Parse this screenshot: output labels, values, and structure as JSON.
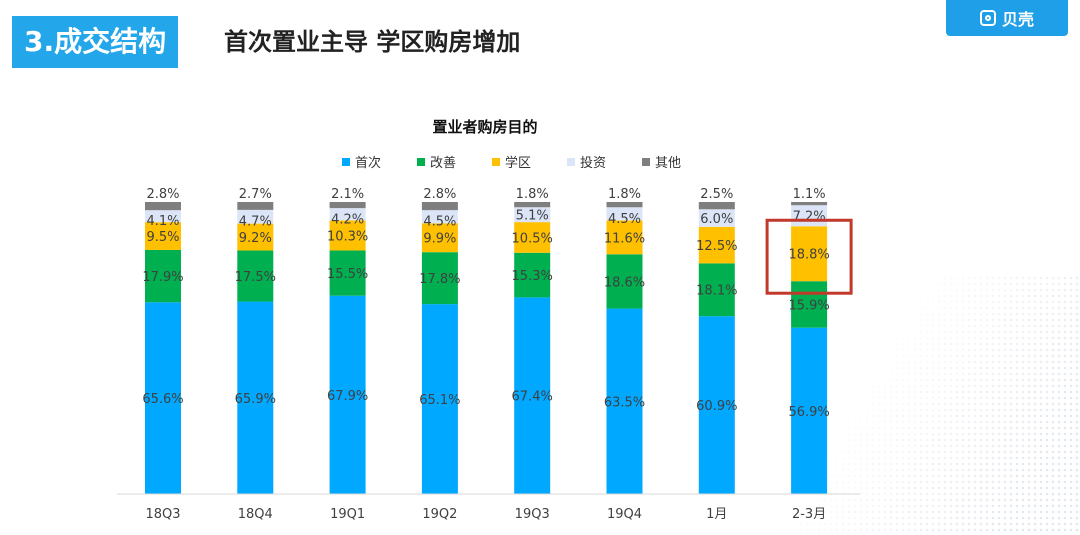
{
  "header": {
    "section_tag": "3.成交结构",
    "headline": "首次置业主导  学区购房增加",
    "brand_label": "贝壳"
  },
  "chart_data": {
    "type": "bar",
    "stacked": true,
    "title": "置业者购房目的",
    "categories": [
      "18Q3",
      "18Q4",
      "19Q1",
      "19Q2",
      "19Q3",
      "19Q4",
      "1月",
      "2-3月"
    ],
    "series": [
      {
        "name": "首次",
        "color": "#00a8ff",
        "values": [
          65.6,
          65.9,
          67.9,
          65.1,
          67.4,
          63.5,
          60.9,
          56.9
        ]
      },
      {
        "name": "改善",
        "color": "#00b050",
        "values": [
          17.9,
          17.5,
          15.5,
          17.8,
          15.3,
          18.6,
          18.1,
          15.9
        ]
      },
      {
        "name": "学区",
        "color": "#ffc000",
        "values": [
          9.5,
          9.2,
          10.3,
          9.9,
          10.5,
          11.6,
          12.5,
          18.8
        ]
      },
      {
        "name": "投资",
        "color": "#dbe5f7",
        "values": [
          4.1,
          4.7,
          4.2,
          4.5,
          5.1,
          4.5,
          6.0,
          7.2
        ]
      },
      {
        "name": "其他",
        "color": "#7f7f7f",
        "values": [
          2.8,
          2.7,
          2.1,
          2.8,
          1.8,
          1.8,
          2.5,
          1.1
        ]
      }
    ],
    "value_format": "%",
    "legend_position": "top",
    "highlight": {
      "category": "2-3月",
      "series": "学区",
      "color": "#c0392b"
    },
    "grid": false
  }
}
